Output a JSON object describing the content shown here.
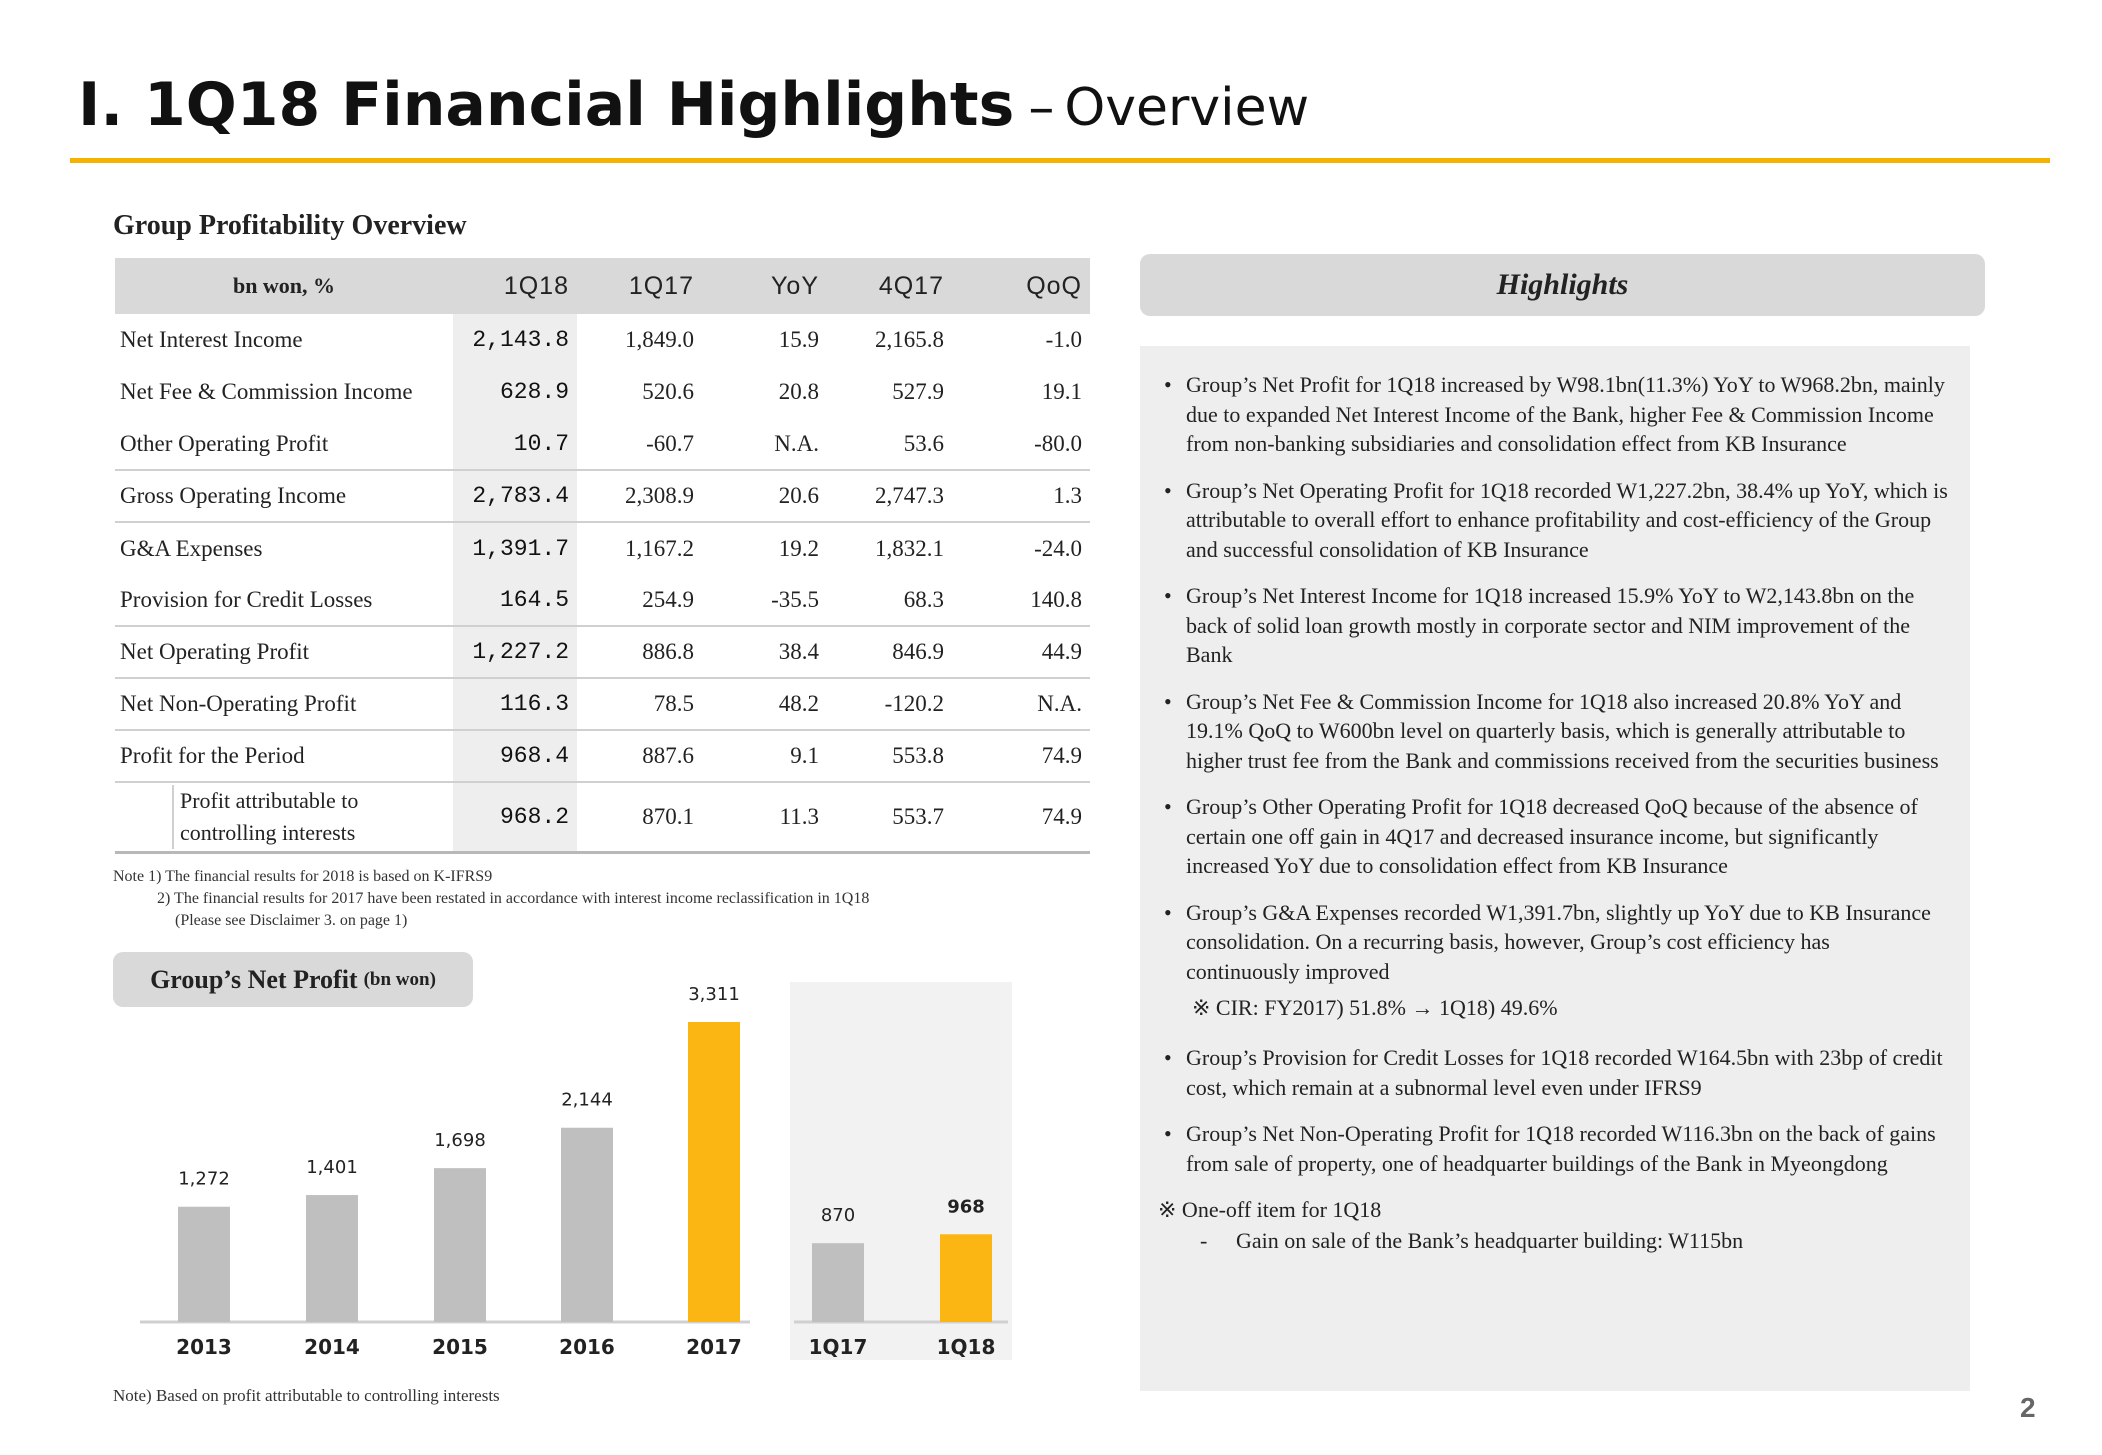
{
  "header": {
    "title": "I. 1Q18 Financial Highlights",
    "dash": "–",
    "subtitle": "Overview",
    "rule_color": "#f5b300"
  },
  "profitability": {
    "section_title": "Group Profitability Overview",
    "columns": [
      "bn won, %",
      "1Q18",
      "1Q17",
      "YoY",
      "4Q17",
      "QoQ"
    ],
    "rows": [
      {
        "label": "Net Interest Income",
        "q118": "2,143.8",
        "q117": "1,849.0",
        "yoy": "15.9",
        "q417": "2,165.8",
        "qoq": "-1.0"
      },
      {
        "label": "Net Fee & Commission Income",
        "q118": "628.9",
        "q117": "520.6",
        "yoy": "20.8",
        "q417": "527.9",
        "qoq": "19.1"
      },
      {
        "label": "Other Operating Profit",
        "q118": "10.7",
        "q117": "-60.7",
        "yoy": "N.A.",
        "q417": "53.6",
        "qoq": "-80.0"
      },
      {
        "label": "Gross Operating Income",
        "q118": "2,783.4",
        "q117": "2,308.9",
        "yoy": "20.6",
        "q417": "2,747.3",
        "qoq": "1.3"
      },
      {
        "label": "G&A Expenses",
        "q118": "1,391.7",
        "q117": "1,167.2",
        "yoy": "19.2",
        "q417": "1,832.1",
        "qoq": "-24.0"
      },
      {
        "label": "Provision for Credit Losses",
        "q118": "164.5",
        "q117": "254.9",
        "yoy": "-35.5",
        "q417": "68.3",
        "qoq": "140.8"
      },
      {
        "label": "Net Operating Profit",
        "q118": "1,227.2",
        "q117": "886.8",
        "yoy": "38.4",
        "q417": "846.9",
        "qoq": "44.9"
      },
      {
        "label": "Net Non-Operating Profit",
        "q118": "116.3",
        "q117": "78.5",
        "yoy": "48.2",
        "q417": "-120.2",
        "qoq": "N.A."
      },
      {
        "label": "Profit for the Period",
        "q118": "968.4",
        "q117": "887.6",
        "yoy": "9.1",
        "q417": "553.8",
        "qoq": "74.9"
      },
      {
        "label": "Profit attributable to controlling interests",
        "q118": "968.2",
        "q117": "870.1",
        "yoy": "11.3",
        "q417": "553.7",
        "qoq": "74.9"
      }
    ],
    "notes": [
      "Note 1) The financial results for 2018 is based on K-IFRS9",
      "2) The financial results for 2017 have been restated in accordance with interest income reclassification in 1Q18",
      "(Please see Disclaimer 3. on page 1)"
    ]
  },
  "net_profit": {
    "title": "Group’s Net Profit",
    "unit": "(bn won)",
    "note": "Note) Based on profit attributable to controlling interests"
  },
  "chart_data": {
    "type": "bar",
    "title": "Group’s Net Profit (bn won)",
    "groups": [
      {
        "name": "annual",
        "categories": [
          "2013",
          "2014",
          "2015",
          "2016",
          "2017"
        ],
        "values": [
          1272,
          1401,
          1698,
          2144,
          3311
        ],
        "labels": [
          "1,272",
          "1,401",
          "1,698",
          "2,144",
          "3,311"
        ],
        "highlight_index": 4
      },
      {
        "name": "quarterly",
        "categories": [
          "1Q17",
          "1Q18"
        ],
        "values": [
          870,
          968
        ],
        "labels": [
          "870",
          "968"
        ],
        "highlight_index": 1
      }
    ],
    "ylim": [
      0,
      3311
    ],
    "grid": false,
    "colors": {
      "base": "#bfbfbf",
      "highlight": "#fbb614",
      "panel": "#f2f2f2"
    }
  },
  "highlights": {
    "title": "Highlights",
    "bullet": "•",
    "items": [
      "Group’s Net Profit for 1Q18 increased by W98.1bn(11.3%) YoY to W968.2bn, mainly due to  expanded Net Interest Income of the Bank, higher Fee & Commission Income from non-banking subsidiaries and consolidation effect from KB Insurance",
      "Group’s Net Operating Profit for 1Q18 recorded W1,227.2bn, 38.4% up YoY, which is attributable to overall effort to enhance profitability and cost-efficiency of the Group and successful consolidation of KB Insurance",
      "Group’s Net Interest Income for 1Q18 increased 15.9% YoY to W2,143.8bn on the back of  solid loan growth mostly in corporate sector and NIM improvement of the Bank",
      "Group’s Net Fee & Commission Income for 1Q18 also increased 20.8% YoY and 19.1% QoQ to W600bn level on quarterly basis, which is generally attributable to higher trust fee from the Bank and commissions received from the securities business",
      "Group’s Other Operating Profit for 1Q18 decreased QoQ because of the absence of certain one off gain in 4Q17 and decreased insurance income, but significantly increased YoY due to consolidation effect from KB Insurance",
      "Group’s G&A Expenses recorded W1,391.7bn, slightly up YoY due to KB Insurance consolidation. On a recurring basis, however, Group’s cost efficiency has continuously improved"
    ],
    "cir_note": "※ CIR: FY2017) 51.8% → 1Q18) 49.6%",
    "items2": [
      "Group’s Provision for Credit Losses for 1Q18 recorded W164.5bn with 23bp of credit cost, which remain at a subnormal level even under IFRS9",
      "Group’s Net Non-Operating Profit for 1Q18 recorded W116.3bn on the back of gains from sale of property, one of headquarter buildings of the Bank in Myeongdong"
    ],
    "oneoff_title": "※ One-off item for 1Q18",
    "oneoff_dash": "-",
    "oneoff_item": "Gain on sale of the Bank’s headquarter building: W115bn"
  },
  "page_number": "2"
}
